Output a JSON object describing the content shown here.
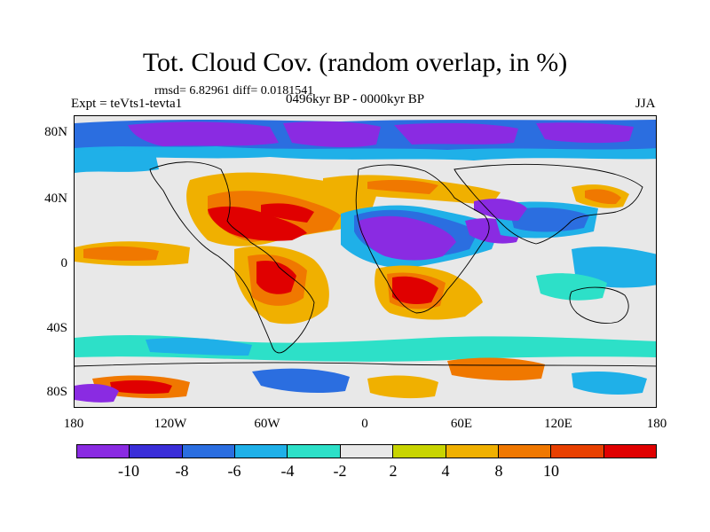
{
  "figure": {
    "title": "Tot. Cloud Cov. (random overlap, in %)",
    "stats": "rmsd= 6.82961 diff= 0.0181541",
    "experiment": "Expt = teVts1-tevta1",
    "period": "0496kyr BP - 0000kyr BP",
    "season": "JJA"
  },
  "axes": {
    "y_labels": [
      "80N",
      "40N",
      "0",
      "40S",
      "80S"
    ],
    "x_labels": [
      "180",
      "120W",
      "60W",
      "0",
      "60E",
      "120E",
      "180"
    ]
  },
  "colorbar": {
    "colors": [
      "#8a2be2",
      "#3a2ed8",
      "#2b6ee0",
      "#1fb0e8",
      "#2de0c8",
      "#e8e8e8",
      "#c8d400",
      "#f0b000",
      "#f07800",
      "#e84000",
      "#e00000"
    ],
    "labels": [
      "-10",
      "-8",
      "-6",
      "-4",
      "-2",
      "2",
      "4",
      "8",
      "10"
    ]
  },
  "map_palette": {
    "purple": "#8a2be2",
    "blue": "#3a2ed8",
    "mblue": "#2b6ee0",
    "cyan": "#1fb0e8",
    "teal": "#2de0c8",
    "grey": "#e8e8e8",
    "yellow": "#c8d400",
    "amber": "#f0b000",
    "orange": "#f07800",
    "redor": "#e84000",
    "red": "#e00000"
  }
}
